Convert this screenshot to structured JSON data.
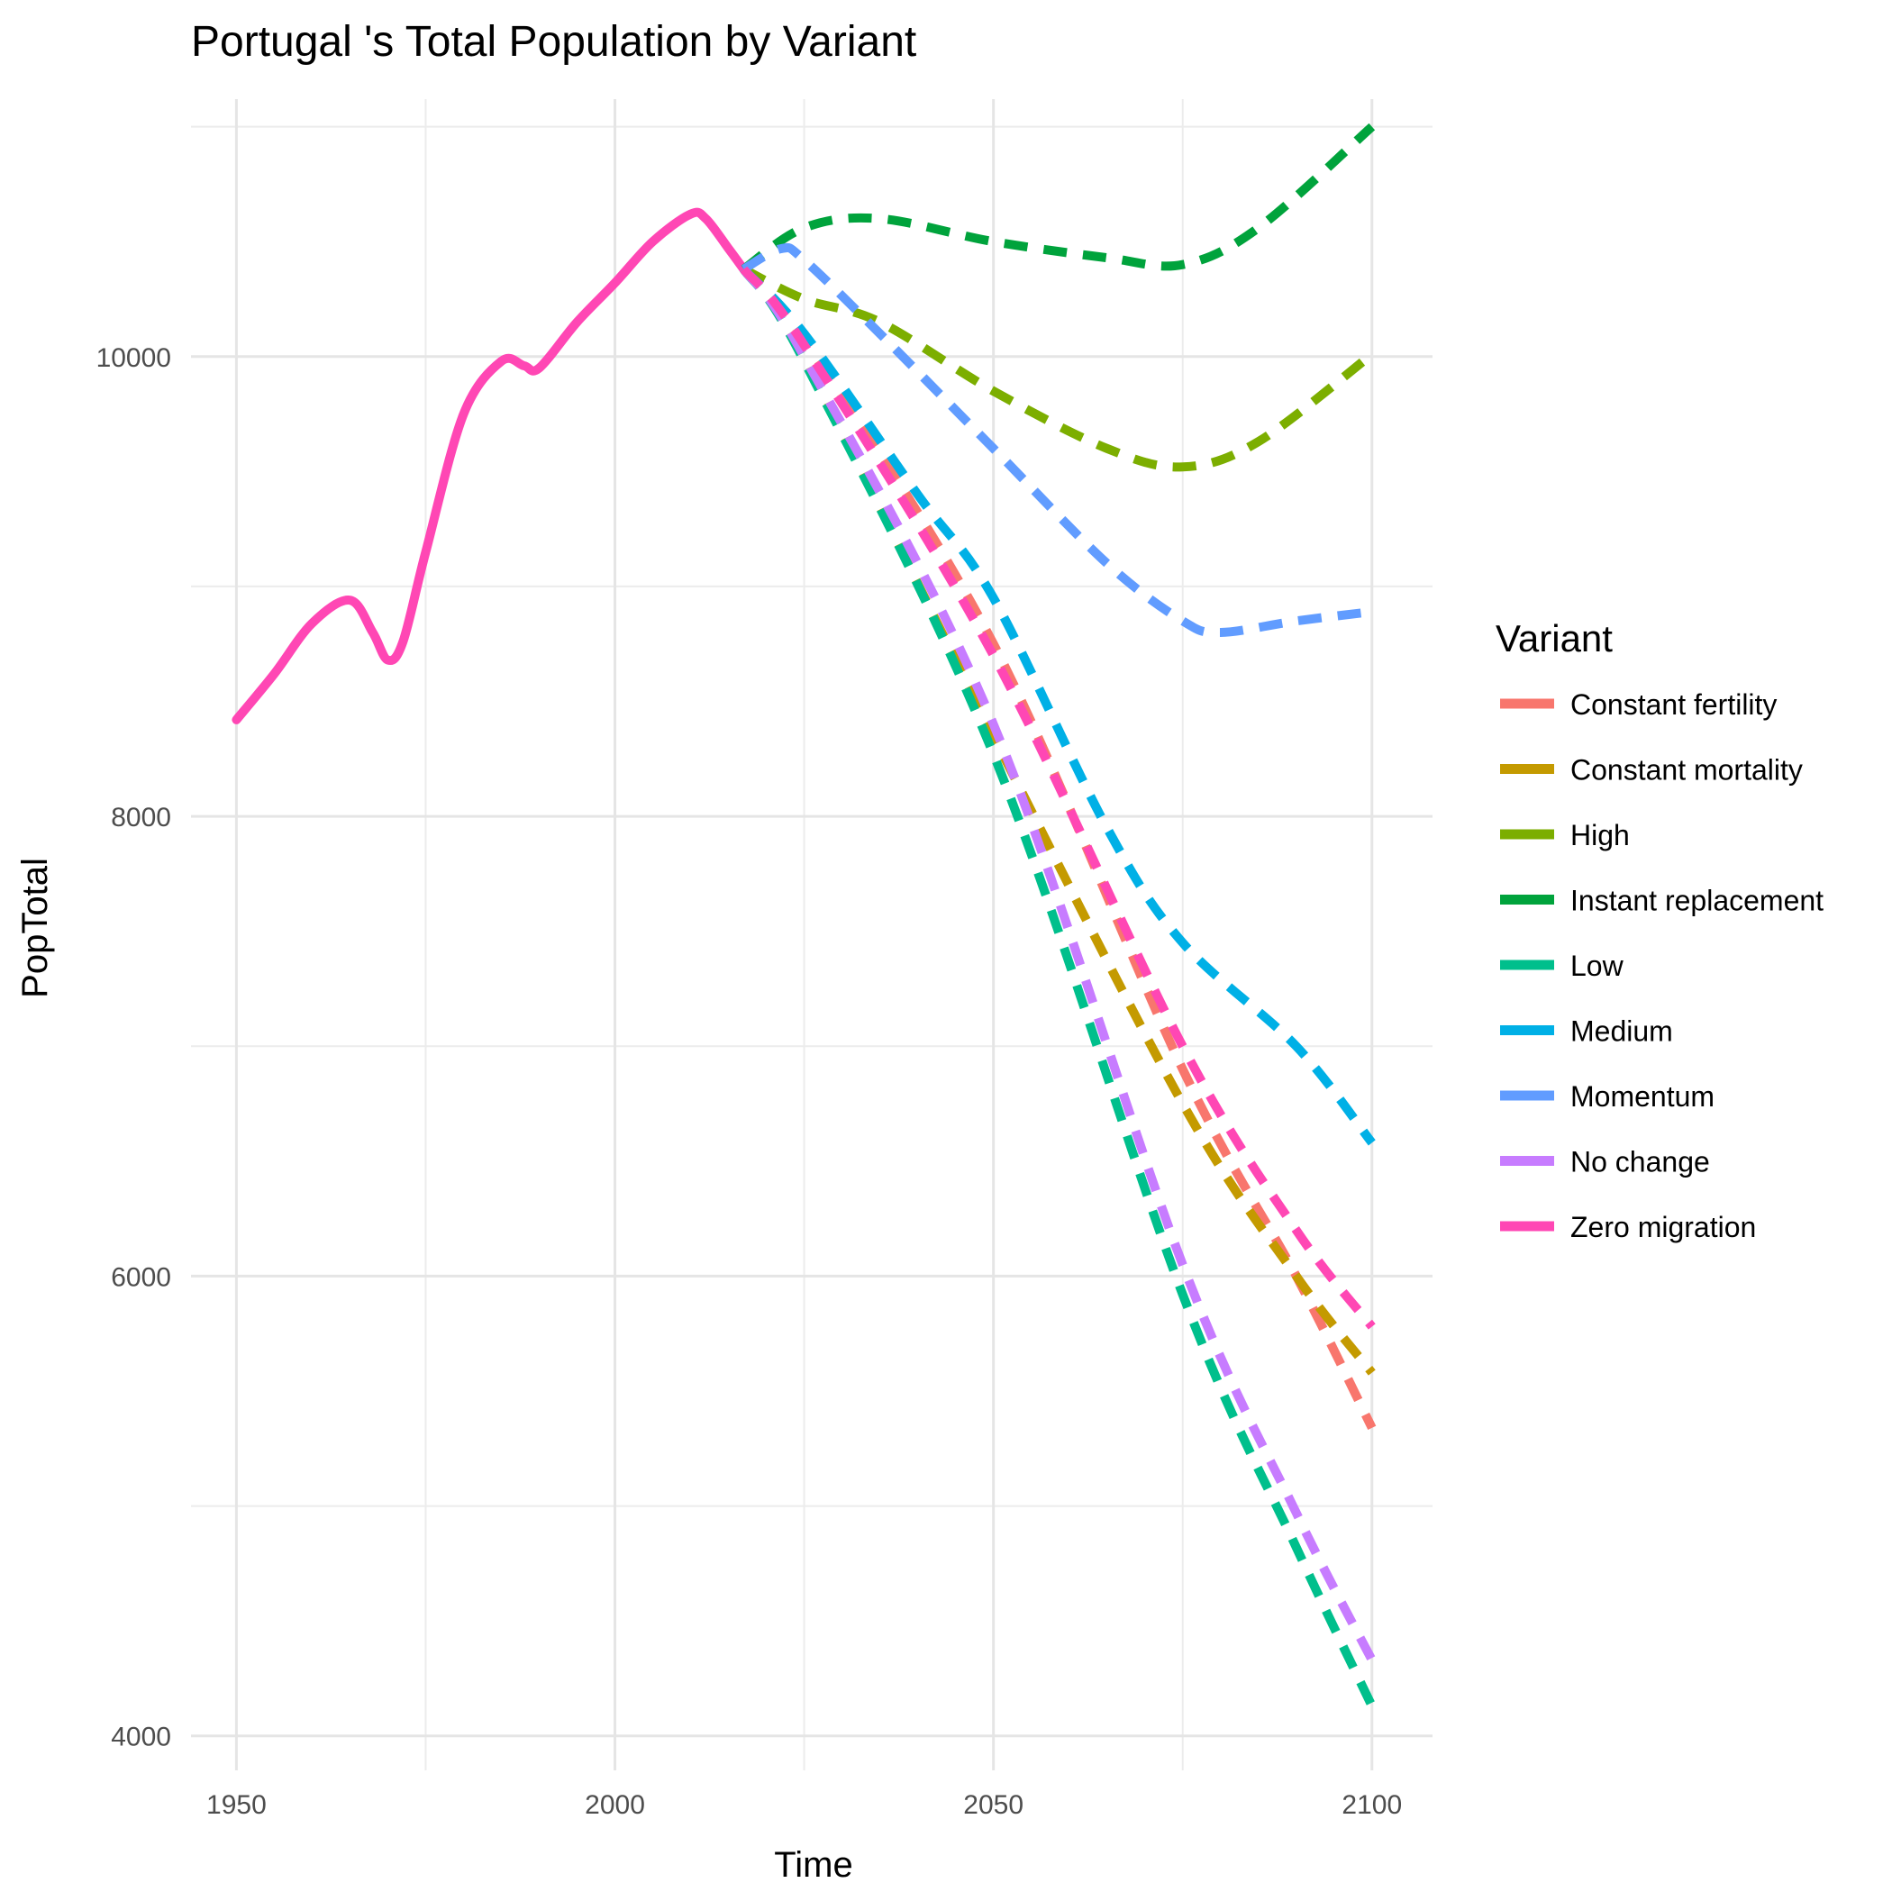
{
  "chart_data": {
    "type": "line",
    "title": "Portugal 's Total Population by Variant",
    "xlabel": "Time",
    "ylabel": "PopTotal",
    "xlim": [
      1944,
      2108
    ],
    "ylim": [
      3850,
      11120
    ],
    "x_ticks": [
      1950,
      2000,
      2050,
      2100
    ],
    "y_ticks": [
      4000,
      6000,
      8000,
      10000
    ],
    "grid": true,
    "legend": {
      "title": "Variant",
      "position": "right"
    },
    "historical": {
      "name": "Zero migration",
      "x": [
        1950,
        1955,
        1960,
        1965,
        1968,
        1970,
        1972,
        1975,
        1980,
        1985,
        1988,
        1990,
        1995,
        2000,
        2005,
        2010,
        2012,
        2015,
        2017
      ],
      "y": [
        8420,
        8620,
        8840,
        8940,
        8800,
        8680,
        8760,
        9150,
        9750,
        9980,
        9960,
        9950,
        10150,
        10320,
        10500,
        10620,
        10600,
        10470,
        10380
      ]
    },
    "series": [
      {
        "name": "Constant fertility",
        "color": "#F8766D",
        "dash": true,
        "x": [
          2017,
          2025,
          2050,
          2075,
          2090,
          2100
        ],
        "y": [
          10380,
          10070,
          8750,
          6900,
          6000,
          5340
        ]
      },
      {
        "name": "Constant mortality",
        "color": "#C49A00",
        "dash": true,
        "x": [
          2017,
          2025,
          2050,
          2075,
          2090,
          2100
        ],
        "y": [
          10380,
          10000,
          8350,
          6750,
          6000,
          5580
        ]
      },
      {
        "name": "High",
        "color": "#7CAE00",
        "dash": true,
        "x": [
          2017,
          2025,
          2035,
          2050,
          2065,
          2075,
          2085,
          2100
        ],
        "y": [
          10380,
          10250,
          10150,
          9850,
          9600,
          9520,
          9630,
          10010
        ]
      },
      {
        "name": "Instant replacement",
        "color": "#00A33C",
        "dash": true,
        "x": [
          2017,
          2025,
          2035,
          2050,
          2065,
          2075,
          2085,
          2100
        ],
        "y": [
          10380,
          10560,
          10600,
          10500,
          10430,
          10400,
          10560,
          11000
        ]
      },
      {
        "name": "Low",
        "color": "#00BF8C",
        "dash": true,
        "x": [
          2017,
          2025,
          2050,
          2075,
          2090,
          2100
        ],
        "y": [
          10380,
          9980,
          8270,
          5920,
          4820,
          4130
        ]
      },
      {
        "name": "Medium",
        "color": "#00B0E6",
        "dash": true,
        "x": [
          2017,
          2025,
          2040,
          2050,
          2065,
          2075,
          2090,
          2100
        ],
        "y": [
          10380,
          10100,
          9400,
          8950,
          7950,
          7450,
          7000,
          6580
        ]
      },
      {
        "name": "Momentum",
        "color": "#619CFF",
        "dash": true,
        "x": [
          2017,
          2022,
          2025,
          2035,
          2050,
          2065,
          2075,
          2080,
          2090,
          2100
        ],
        "y": [
          10380,
          10470,
          10420,
          10100,
          9600,
          9100,
          8850,
          8800,
          8850,
          8890
        ]
      },
      {
        "name": "No change",
        "color": "#C77CFF",
        "dash": true,
        "x": [
          2017,
          2025,
          2050,
          2075,
          2090,
          2100
        ],
        "y": [
          10380,
          10000,
          8400,
          6050,
          4970,
          4330
        ]
      },
      {
        "name": "Zero migration",
        "color": "#FF47B4",
        "dash": true,
        "x": [
          2017,
          2025,
          2050,
          2075,
          2090,
          2100
        ],
        "y": [
          10380,
          10050,
          8700,
          7000,
          6200,
          5780
        ]
      }
    ],
    "minor_x": [
      1975,
      2025,
      2075
    ],
    "minor_y": [
      5000,
      7000,
      9000,
      11000
    ]
  }
}
